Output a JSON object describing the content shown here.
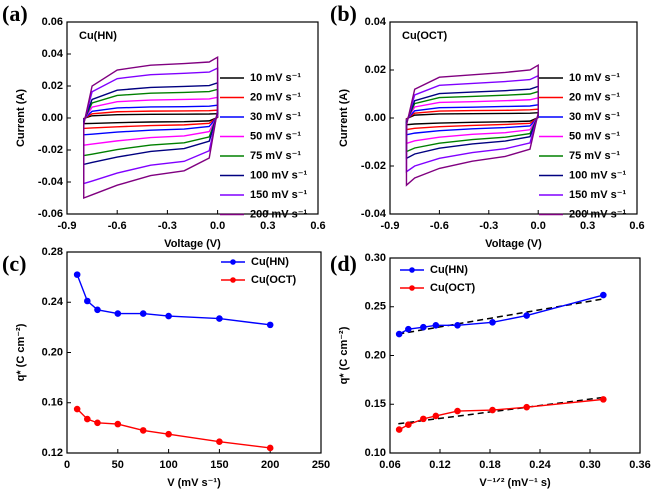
{
  "chart_data": [
    {
      "type": "line",
      "label": "(a)",
      "annotation": "Cu(HN)",
      "xlabel": "Voltage (V)",
      "ylabel": "Current (A)",
      "xlim": [
        -0.9,
        0.6
      ],
      "xticks": [
        -0.9,
        -0.6,
        -0.3,
        {
          "value": 0,
          "label": "0.0"
        },
        0.3,
        0.6
      ],
      "ylim": [
        -0.06,
        0.06
      ],
      "yticks": [
        -0.06,
        -0.04,
        -0.02,
        {
          "value": 0,
          "label": "0.00"
        },
        0.02,
        0.04,
        0.06
      ],
      "closed": true,
      "legend": "right",
      "x": [
        -0.8,
        -0.75,
        -0.6,
        -0.4,
        -0.2,
        -0.05,
        0,
        0,
        -0.05,
        -0.2,
        -0.4,
        -0.6,
        -0.75,
        -0.8
      ],
      "series": [
        {
          "name": "10 mV s⁻¹",
          "color": "#000000",
          "values": [
            -0.0003,
            0.0014,
            0.0021,
            0.0023,
            0.0024,
            0.0025,
            0.0027,
            0.0004,
            -0.0018,
            -0.0023,
            -0.0025,
            -0.0029,
            -0.0034,
            -0.0035
          ]
        },
        {
          "name": "20 mV s⁻¹",
          "color": "#ff0000",
          "values": [
            -0.0005,
            0.0026,
            0.0039,
            0.0043,
            0.0044,
            0.0046,
            0.0049,
            0.0007,
            -0.0033,
            -0.0043,
            -0.0047,
            -0.0055,
            -0.0062,
            -0.0065
          ]
        },
        {
          "name": "30 mV s⁻¹",
          "color": "#0000ff",
          "values": [
            -0.0008,
            0.0042,
            0.0063,
            0.0069,
            0.0071,
            0.0074,
            0.008,
            0.0011,
            -0.0053,
            -0.0069,
            -0.0076,
            -0.0088,
            -0.0101,
            -0.0105
          ]
        },
        {
          "name": "50 mV s⁻¹",
          "color": "#ff00ff",
          "values": [
            -0.0014,
            0.0068,
            0.0102,
            0.0112,
            0.0116,
            0.0119,
            0.0129,
            0.0017,
            -0.0085,
            -0.0112,
            -0.0122,
            -0.0143,
            -0.0163,
            -0.017
          ]
        },
        {
          "name": "75 mV s⁻¹",
          "color": "#008000",
          "values": [
            -0.0019,
            0.0094,
            0.0141,
            0.0155,
            0.016,
            0.0165,
            0.0179,
            0.0024,
            -0.0118,
            -0.0155,
            -0.0169,
            -0.0197,
            -0.0226,
            -0.0235
          ]
        },
        {
          "name": "100 mV s⁻¹",
          "color": "#000080",
          "values": [
            -0.0023,
            0.0116,
            0.0174,
            0.0191,
            0.0197,
            0.0203,
            0.022,
            0.0029,
            -0.0145,
            -0.0191,
            -0.0209,
            -0.0244,
            -0.0278,
            -0.029
          ]
        },
        {
          "name": "150 mV s⁻¹",
          "color": "#8000ff",
          "values": [
            -0.0033,
            0.0164,
            0.0246,
            0.0271,
            0.0279,
            0.0287,
            0.0312,
            0.0041,
            -0.0205,
            -0.0271,
            -0.0295,
            -0.0344,
            -0.0394,
            -0.041
          ]
        },
        {
          "name": "200 mV s⁻¹",
          "color": "#800080",
          "values": [
            -0.004,
            0.02,
            0.03,
            0.033,
            0.034,
            0.035,
            0.038,
            0.005,
            -0.025,
            -0.033,
            -0.036,
            -0.042,
            -0.048,
            -0.05
          ]
        }
      ]
    },
    {
      "type": "line",
      "label": "(b)",
      "annotation": "Cu(OCT)",
      "xlabel": "Voltage (V)",
      "ylabel": "Current (A)",
      "xlim": [
        -0.9,
        0.6
      ],
      "xticks": [
        -0.9,
        -0.6,
        -0.3,
        {
          "value": 0,
          "label": "0.0"
        },
        0.3,
        0.6
      ],
      "ylim": [
        -0.04,
        0.04
      ],
      "yticks": [
        -0.04,
        -0.02,
        {
          "value": 0,
          "label": "0.00"
        },
        0.02,
        0.04
      ],
      "closed": true,
      "legend": "right",
      "x": [
        -0.8,
        -0.75,
        -0.6,
        -0.4,
        -0.2,
        -0.05,
        0,
        0,
        -0.05,
        -0.2,
        -0.4,
        -0.6,
        -0.75,
        -0.8
      ],
      "series": [
        {
          "name": "10 mV s⁻¹",
          "color": "#000000",
          "values": [
            -0.0003,
            0.0012,
            0.0017,
            0.0018,
            0.0019,
            0.002,
            0.0022,
            0.0002,
            -0.0013,
            -0.0016,
            -0.0018,
            -0.0021,
            -0.0025,
            -0.0028
          ]
        },
        {
          "name": "20 mV s⁻¹",
          "color": "#ff0000",
          "values": [
            -0.0005,
            0.002,
            0.0029,
            0.0031,
            0.0032,
            0.0034,
            0.0037,
            0.0003,
            -0.0022,
            -0.0027,
            -0.0031,
            -0.0036,
            -0.0043,
            -0.0048
          ]
        },
        {
          "name": "30 mV s⁻¹",
          "color": "#0000ff",
          "values": [
            -0.0008,
            0.003,
            0.0043,
            0.0045,
            0.0048,
            0.005,
            0.0055,
            0.0005,
            -0.0033,
            -0.004,
            -0.0045,
            -0.0053,
            -0.0063,
            -0.007
          ]
        },
        {
          "name": "50 mV s⁻¹",
          "color": "#ff00ff",
          "values": [
            -0.0011,
            0.0046,
            0.0065,
            0.0068,
            0.0072,
            0.0076,
            0.0084,
            0.0008,
            -0.0049,
            -0.0061,
            -0.0068,
            -0.008,
            -0.0095,
            -0.0106
          ]
        },
        {
          "name": "75 mV s⁻¹",
          "color": "#008000",
          "values": [
            -0.0015,
            0.006,
            0.0085,
            0.009,
            0.0095,
            0.01,
            0.011,
            0.001,
            -0.0065,
            -0.008,
            -0.009,
            -0.0105,
            -0.0125,
            -0.014
          ]
        },
        {
          "name": "100 mV s⁻¹",
          "color": "#000080",
          "values": [
            -0.0018,
            0.0072,
            0.0102,
            0.0108,
            0.0114,
            0.012,
            0.0132,
            0.0012,
            -0.0078,
            -0.0096,
            -0.0108,
            -0.0126,
            -0.015,
            -0.0168
          ]
        },
        {
          "name": "150 mV s⁻¹",
          "color": "#8000ff",
          "values": [
            -0.0024,
            0.0096,
            0.0136,
            0.0144,
            0.0152,
            0.016,
            0.0176,
            0.0016,
            -0.0104,
            -0.0128,
            -0.0144,
            -0.0168,
            -0.02,
            -0.0224
          ]
        },
        {
          "name": "200 mV s⁻¹",
          "color": "#800080",
          "values": [
            -0.003,
            0.012,
            0.017,
            0.018,
            0.019,
            0.02,
            0.022,
            0.002,
            -0.013,
            -0.016,
            -0.018,
            -0.021,
            -0.025,
            -0.028
          ]
        }
      ]
    },
    {
      "type": "line",
      "label": "(c)",
      "xlabel": "V (mV s⁻¹)",
      "ylabel": "q* (C cm⁻²)",
      "xlim": [
        0,
        250
      ],
      "xticks": [
        0,
        50,
        100,
        150,
        200,
        250
      ],
      "ylim": [
        0.12,
        0.28
      ],
      "yticks": [
        0.12,
        0.16,
        {
          "value": 0.2,
          "label": "0.20"
        },
        0.24,
        0.28
      ],
      "markers": true,
      "legend": "upper right",
      "x": [
        10,
        20,
        30,
        50,
        75,
        100,
        150,
        200
      ],
      "series": [
        {
          "name": "Cu(HN)",
          "color": "#0000ff",
          "values": [
            0.262,
            0.241,
            0.234,
            0.231,
            0.231,
            0.229,
            0.227,
            0.222
          ]
        },
        {
          "name": "Cu(OCT)",
          "color": "#ff0000",
          "values": [
            0.155,
            0.147,
            0.144,
            0.143,
            0.138,
            0.135,
            0.129,
            0.124
          ]
        }
      ]
    },
    {
      "type": "line",
      "label": "(d)",
      "xlabel": "V⁻¹ᐟ² (mV⁻¹ s)",
      "ylabel": "q* (C cm⁻²)",
      "xlim": [
        0.06,
        0.36
      ],
      "xticks": [
        0.06,
        0.12,
        0.18,
        0.24,
        {
          "value": 0.3,
          "label": "0.30"
        },
        0.36
      ],
      "ylim": [
        0.1,
        0.3
      ],
      "yticks": [
        {
          "value": 0.1,
          "label": "0.10"
        },
        0.15,
        {
          "value": 0.2,
          "label": "0.20"
        },
        0.25,
        {
          "value": 0.3,
          "label": "0.30"
        }
      ],
      "markers": true,
      "legend": "upper left",
      "fit_color": "#000000",
      "x": [
        0.316,
        0.224,
        0.183,
        0.141,
        0.115,
        0.1,
        0.082,
        0.071
      ],
      "series": [
        {
          "name": "Cu(HN)",
          "color": "#0000ff",
          "values": [
            0.262,
            0.241,
            0.234,
            0.231,
            0.231,
            0.229,
            0.227,
            0.222
          ]
        },
        {
          "name": "Cu(OCT)",
          "color": "#ff0000",
          "values": [
            0.155,
            0.147,
            0.144,
            0.143,
            0.138,
            0.135,
            0.129,
            0.124
          ]
        }
      ],
      "fits": [
        {
          "x": [
            0.07,
            0.316
          ],
          "values": [
            0.222,
            0.258
          ]
        },
        {
          "x": [
            0.07,
            0.316
          ],
          "values": [
            0.13,
            0.157
          ]
        }
      ]
    }
  ]
}
